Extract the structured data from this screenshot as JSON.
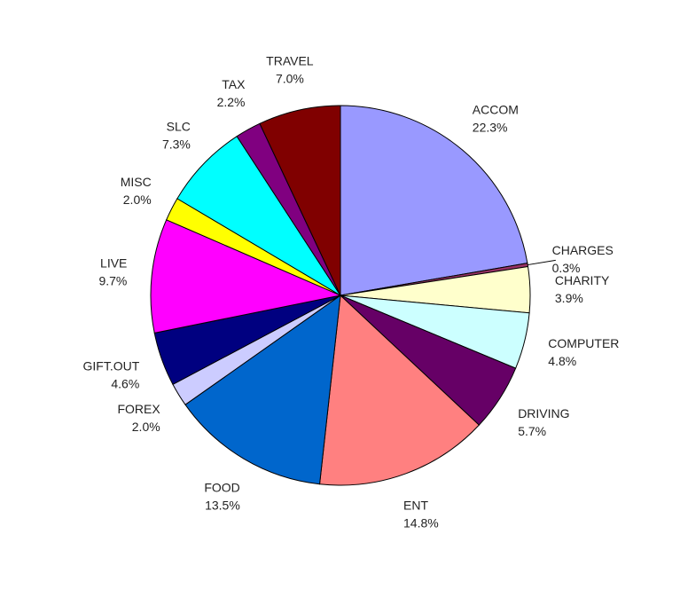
{
  "chart_data": {
    "type": "pie",
    "title": "",
    "start_angle_deg": 90,
    "direction": "clockwise",
    "slices": [
      {
        "label": "ACCOM",
        "pct_label": "22.3%",
        "value": 22.3,
        "color": "#9999FF"
      },
      {
        "label": "CHARGES",
        "pct_label": "0.3%",
        "value": 0.3,
        "color": "#993366"
      },
      {
        "label": "CHARITY",
        "pct_label": "3.9%",
        "value": 3.9,
        "color": "#FFFFCC"
      },
      {
        "label": "COMPUTER",
        "pct_label": "4.8%",
        "value": 4.8,
        "color": "#CCFFFF"
      },
      {
        "label": "DRIVING",
        "pct_label": "5.7%",
        "value": 5.7,
        "color": "#660066"
      },
      {
        "label": "ENT",
        "pct_label": "14.8%",
        "value": 14.8,
        "color": "#FF8080"
      },
      {
        "label": "FOOD",
        "pct_label": "13.5%",
        "value": 13.5,
        "color": "#0066CC"
      },
      {
        "label": "FOREX",
        "pct_label": "2.0%",
        "value": 2.0,
        "color": "#CCCCFF"
      },
      {
        "label": "GIFT.OUT",
        "pct_label": "4.6%",
        "value": 4.6,
        "color": "#000080"
      },
      {
        "label": "LIVE",
        "pct_label": "9.7%",
        "value": 9.7,
        "color": "#FF00FF"
      },
      {
        "label": "MISC",
        "pct_label": "2.0%",
        "value": 2.0,
        "color": "#FFFF00"
      },
      {
        "label": "SLC",
        "pct_label": "7.3%",
        "value": 7.3,
        "color": "#00FFFF"
      },
      {
        "label": "TAX",
        "pct_label": "2.2%",
        "value": 2.2,
        "color": "#800080"
      },
      {
        "label": "TRAVEL",
        "pct_label": "7.0%",
        "value": 7.0,
        "color": "#800000"
      }
    ]
  }
}
